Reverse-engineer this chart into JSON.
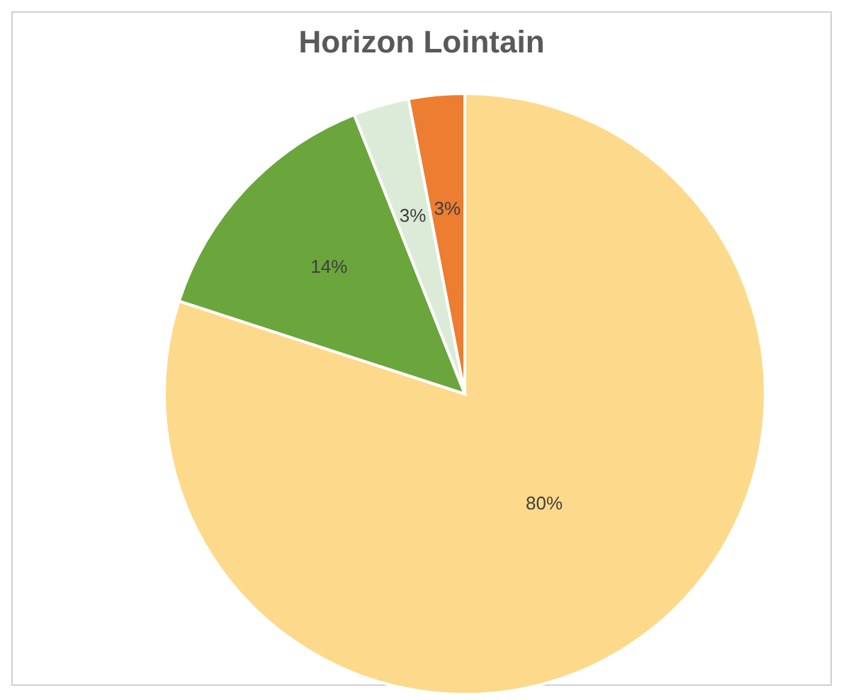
{
  "chart_data": {
    "type": "pie",
    "title": "Horizon Lointain",
    "categories": [
      null,
      null,
      null,
      null
    ],
    "values": [
      80,
      14,
      3,
      3
    ],
    "value_labels": [
      "80%",
      "14%",
      "3%",
      "3%"
    ],
    "colors": [
      "#fdd98b",
      "#6aa63c",
      "#dcebd8",
      "#ed7d31"
    ]
  }
}
